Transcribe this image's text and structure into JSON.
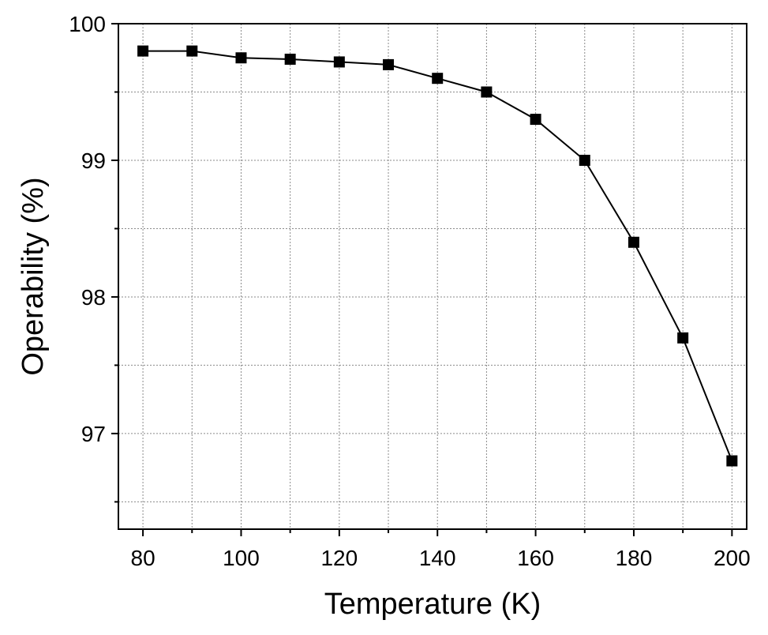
{
  "chart_data": {
    "type": "line",
    "title": "",
    "xlabel": "Temperature (K)",
    "ylabel": "Operability (%)",
    "xlim": [
      75,
      203
    ],
    "ylim": [
      96.3,
      100
    ],
    "x_ticks": [
      80,
      100,
      120,
      140,
      160,
      180,
      200
    ],
    "x_tick_labels": [
      "80",
      "100",
      "120",
      "140",
      "160",
      "180",
      "200"
    ],
    "x_minor_ticks": [
      90,
      110,
      130,
      150,
      170,
      190
    ],
    "y_ticks": [
      97,
      98,
      99,
      100
    ],
    "y_tick_labels": [
      "97",
      "98",
      "99",
      "100"
    ],
    "y_minor_ticks": [
      96.5,
      97.5,
      98.5,
      99.5
    ],
    "grid": true,
    "legend": "none",
    "series": [
      {
        "color": "#000000",
        "marker": "square",
        "x": [
          80,
          90,
          100,
          110,
          120,
          130,
          140,
          150,
          160,
          170,
          180,
          190,
          200
        ],
        "y": [
          99.8,
          99.8,
          99.75,
          99.74,
          99.72,
          99.7,
          99.6,
          99.5,
          99.3,
          99.0,
          98.4,
          97.7,
          96.8
        ]
      }
    ]
  }
}
